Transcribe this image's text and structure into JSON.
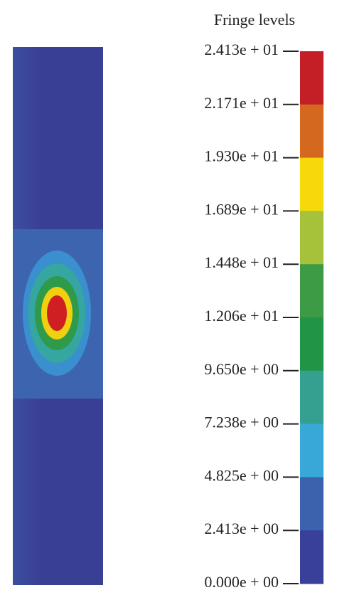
{
  "legend": {
    "title": "Fringe levels",
    "levels": [
      "2.413e + 01",
      "2.171e + 01",
      "1.930e + 01",
      "1.689e + 01",
      "1.448e + 01",
      "1.206e + 01",
      "9.650e + 00",
      "7.238e + 00",
      "4.825e + 00",
      "2.413e + 00",
      "0.000e + 00"
    ],
    "band_colors": [
      "#c41f26",
      "#d4681f",
      "#f6d90a",
      "#a6c13a",
      "#3d9a45",
      "#229446",
      "#35a090",
      "#38a8d8",
      "#3c62ae",
      "#38409a"
    ]
  }
}
